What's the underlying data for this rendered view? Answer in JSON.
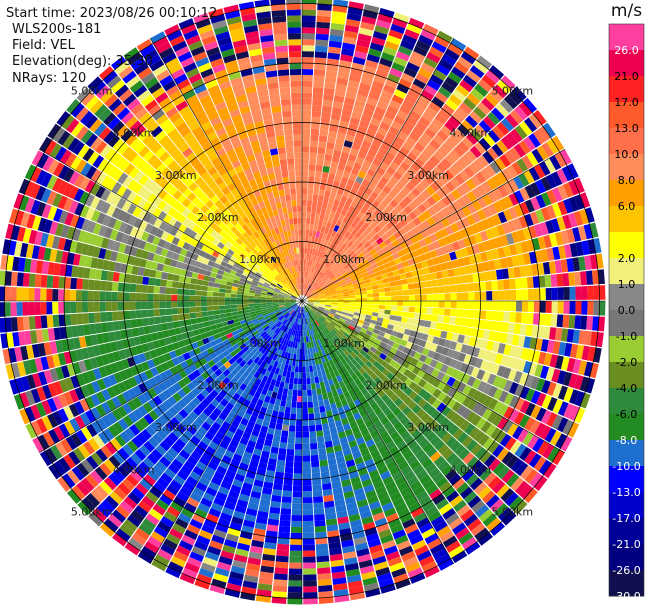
{
  "header": {
    "start_time": "Start time: 2023/08/26 00:10:12",
    "instrument": "WLS200s-181",
    "field": "Field: VEL",
    "elevation": "Elevation(deg): 35.30",
    "nrays": "NRays: 120"
  },
  "chart_data": {
    "type": "heatmap",
    "projection": "polar-ppi",
    "n_rays": 120,
    "field": "VEL",
    "range_rings": [
      {
        "value": 1,
        "label": "1.00km"
      },
      {
        "value": 2,
        "label": "2.00km"
      },
      {
        "value": 3,
        "label": "3.00km"
      },
      {
        "value": 4,
        "label": "4.00km"
      },
      {
        "value": 5,
        "label": "5.00km"
      }
    ],
    "max_range_km": 5.1,
    "spokes_deg": [
      0,
      30,
      60,
      90,
      120,
      150,
      180,
      210,
      240,
      270,
      300,
      330
    ],
    "ring_label_azimuths_deg": [
      45,
      135,
      225,
      315
    ],
    "colorbar": {
      "unit": "m/s",
      "boundaries": [
        30.0,
        26.0,
        21.0,
        17.0,
        13.0,
        10.0,
        8.0,
        6.0,
        4.0,
        2.0,
        1.0,
        0.0,
        -1.0,
        -2.0,
        -4.0,
        -6.0,
        -8.0,
        -10.0,
        -13.0,
        -17.0,
        -21.0,
        -26.0,
        -30.0
      ],
      "tick_labels": [
        "26.0",
        "21.0",
        "17.0",
        "13.0",
        "10.0",
        "8.0",
        "6.0",
        "2.0",
        "1.0",
        "0.0",
        "-1.0",
        "-2.0",
        "-4.0",
        "-6.0",
        "-8.0",
        "-10.0",
        "-13.0",
        "-17.0",
        "-21.0",
        "-26.0",
        "-30.0"
      ],
      "colors": [
        "#ff3fa0",
        "#ee0050",
        "#ff2222",
        "#ff5a2a",
        "#ff6f4a",
        "#ff8c5a",
        "#ffa000",
        "#ffc400",
        "#ffff00",
        "#f0f07a",
        "#888888",
        "#777777",
        "#9acd32",
        "#6b8e23",
        "#2e8b3c",
        "#228b22",
        "#1e6fd0",
        "#0000ff",
        "#0000cc",
        "#000099",
        "#000080",
        "#101050"
      ]
    },
    "velocity_model": {
      "approaching_dir_deg": 22,
      "amplitude_ms": 10.5,
      "noise_free_range_km": 3.7
    },
    "grid": true
  }
}
